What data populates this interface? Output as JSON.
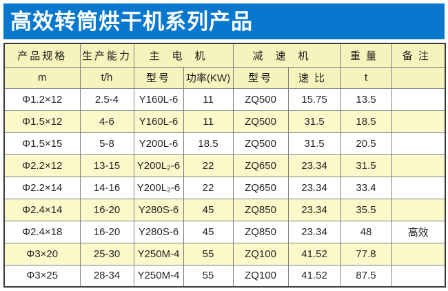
{
  "banner": {
    "title": "高效转筒烘干机系列产品",
    "bg_color": "#0878ce",
    "text_color": "#ffffff"
  },
  "table": {
    "headers": {
      "spec": "产品规格",
      "capacity": "生产能力",
      "motor_group": "主电机",
      "reducer_group": "减速机",
      "weight": "重量",
      "remark": "备注"
    },
    "subheaders": {
      "spec_unit": "m",
      "capacity_unit": "t/h",
      "motor_model": "型号",
      "motor_power": "功率(KW)",
      "reducer_model": "型号",
      "reducer_ratio": "速比",
      "weight_unit": "t",
      "remark_unit": ""
    },
    "column_keys": [
      "spec",
      "capacity",
      "motor-model",
      "motor-power",
      "reducer-model",
      "reducer-ratio",
      "weight",
      "remark"
    ],
    "rows": [
      [
        "Φ1.2×12",
        "2.5-4",
        "Y160L-6",
        "11",
        "ZQ500",
        "15.75",
        "13.5",
        ""
      ],
      [
        "Φ1.5×12",
        "4-6",
        "Y160L-6",
        "11",
        "ZQ500",
        "31.5",
        "18.5",
        ""
      ],
      [
        "Φ1.5×15",
        "5-8",
        "Y200L-6",
        "18.5",
        "ZQ500",
        "31.5",
        "20.5",
        ""
      ],
      [
        "Φ2.2×12",
        "13-15",
        "Y200L₂-6",
        "22",
        "ZQ650",
        "23.34",
        "31.5",
        ""
      ],
      [
        "Φ2.2×14",
        "14-16",
        "Y200L₂-6",
        "22",
        "ZQ650",
        "23.34",
        "33.4",
        ""
      ],
      [
        "Φ2.4×14",
        "16-20",
        "Y280S-6",
        "45",
        "ZQ850",
        "23.34",
        "35.5",
        ""
      ],
      [
        "Φ2.4×18",
        "16-20",
        "Y280S-6",
        "45",
        "ZQ850",
        "23.34",
        "48",
        "高效"
      ],
      [
        "Φ3×20",
        "25-30",
        "Y250M-4",
        "55",
        "ZQ100",
        "41.52",
        "77.8",
        ""
      ],
      [
        "Φ3×25",
        "28-34",
        "Y250M-4",
        "55",
        "ZQ100",
        "41.52",
        "87.5",
        ""
      ]
    ],
    "colors": {
      "header_bg": "#f6f3bc",
      "row_bg": "#ffffff",
      "row_alt_bg": "#fbf8c9",
      "border": "#7d7d7d",
      "outer_border": "#3a3a3a"
    }
  }
}
